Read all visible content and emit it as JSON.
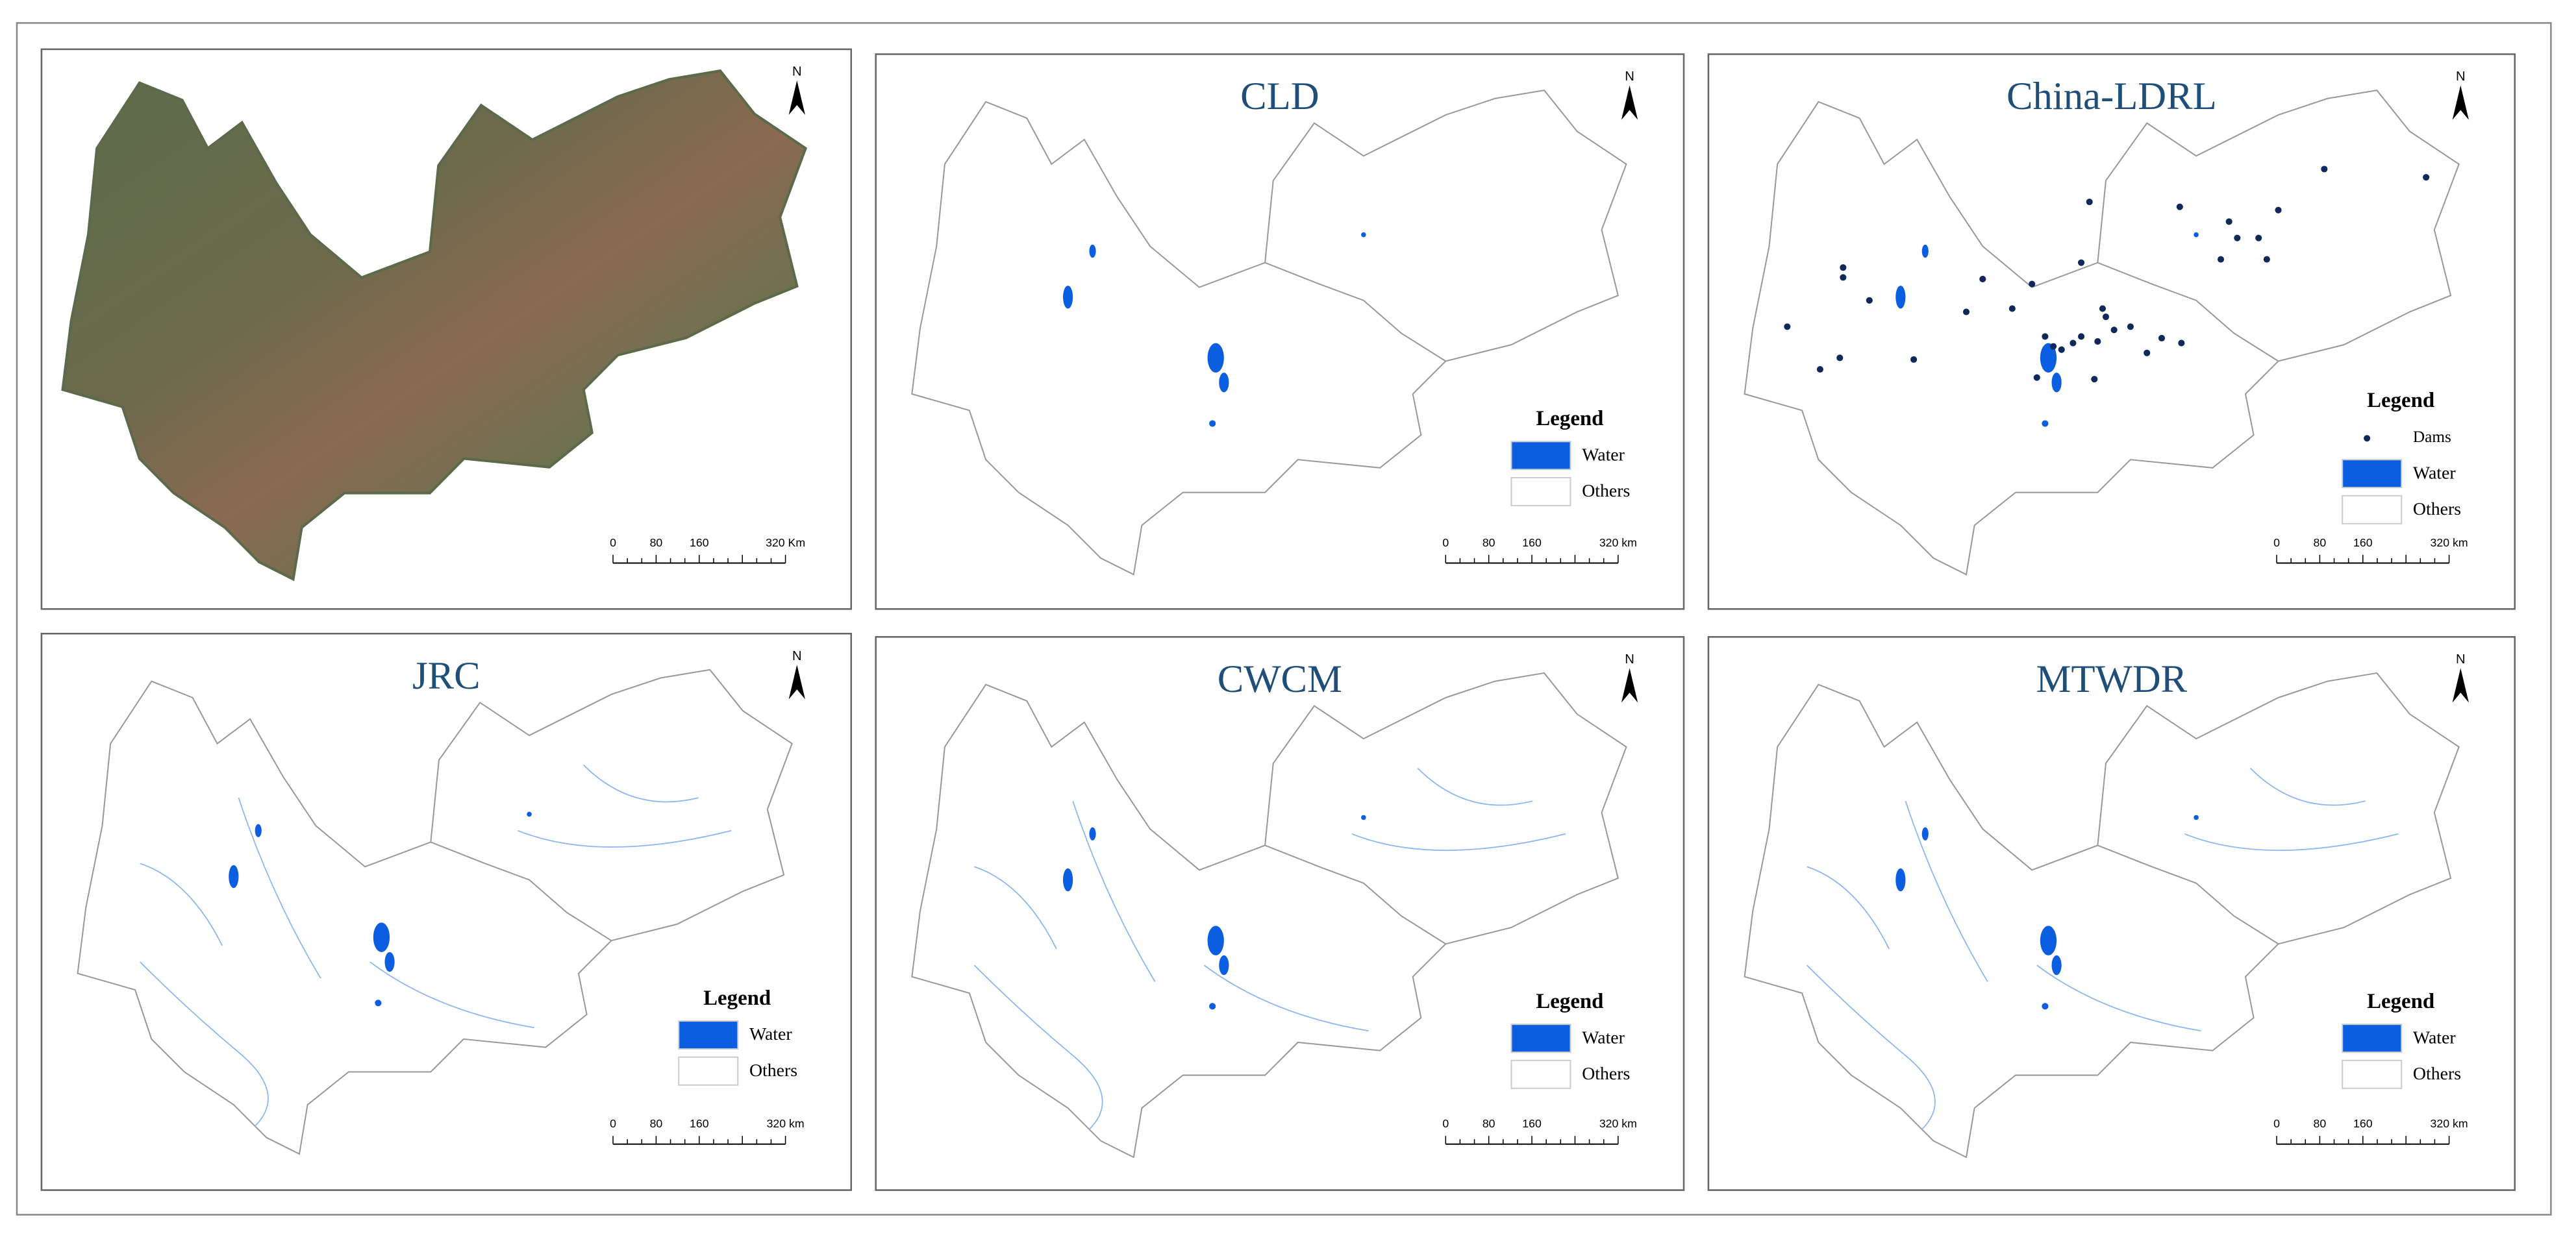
{
  "north": "N",
  "panels": [
    {
      "scale": [
        "0",
        "80",
        "160",
        "320 Km"
      ]
    },
    {
      "title": "CLD",
      "legend": {
        "title": "Legend",
        "items": [
          "Water",
          "Others"
        ]
      },
      "scale": [
        "0",
        "80",
        "160",
        "320 km"
      ]
    },
    {
      "title": "China-LDRL",
      "legend": {
        "title": "Legend",
        "items": [
          "Dams",
          "Water",
          "Others"
        ]
      },
      "scale": [
        "0",
        "80",
        "160",
        "320 km"
      ]
    },
    {
      "title": "JRC",
      "legend": {
        "title": "Legend",
        "items": [
          "Water",
          "Others"
        ]
      },
      "scale": [
        "0",
        "80",
        "160",
        "320 km"
      ]
    },
    {
      "title": "CWCM",
      "legend": {
        "title": "Legend",
        "items": [
          "Water",
          "Others"
        ]
      },
      "scale": [
        "0",
        "80",
        "160",
        "320 km"
      ]
    },
    {
      "title": "MTWDR",
      "legend": {
        "title": "Legend",
        "items": [
          "Water",
          "Others"
        ]
      },
      "scale": [
        "0",
        "80",
        "160",
        "320 km"
      ]
    }
  ]
}
